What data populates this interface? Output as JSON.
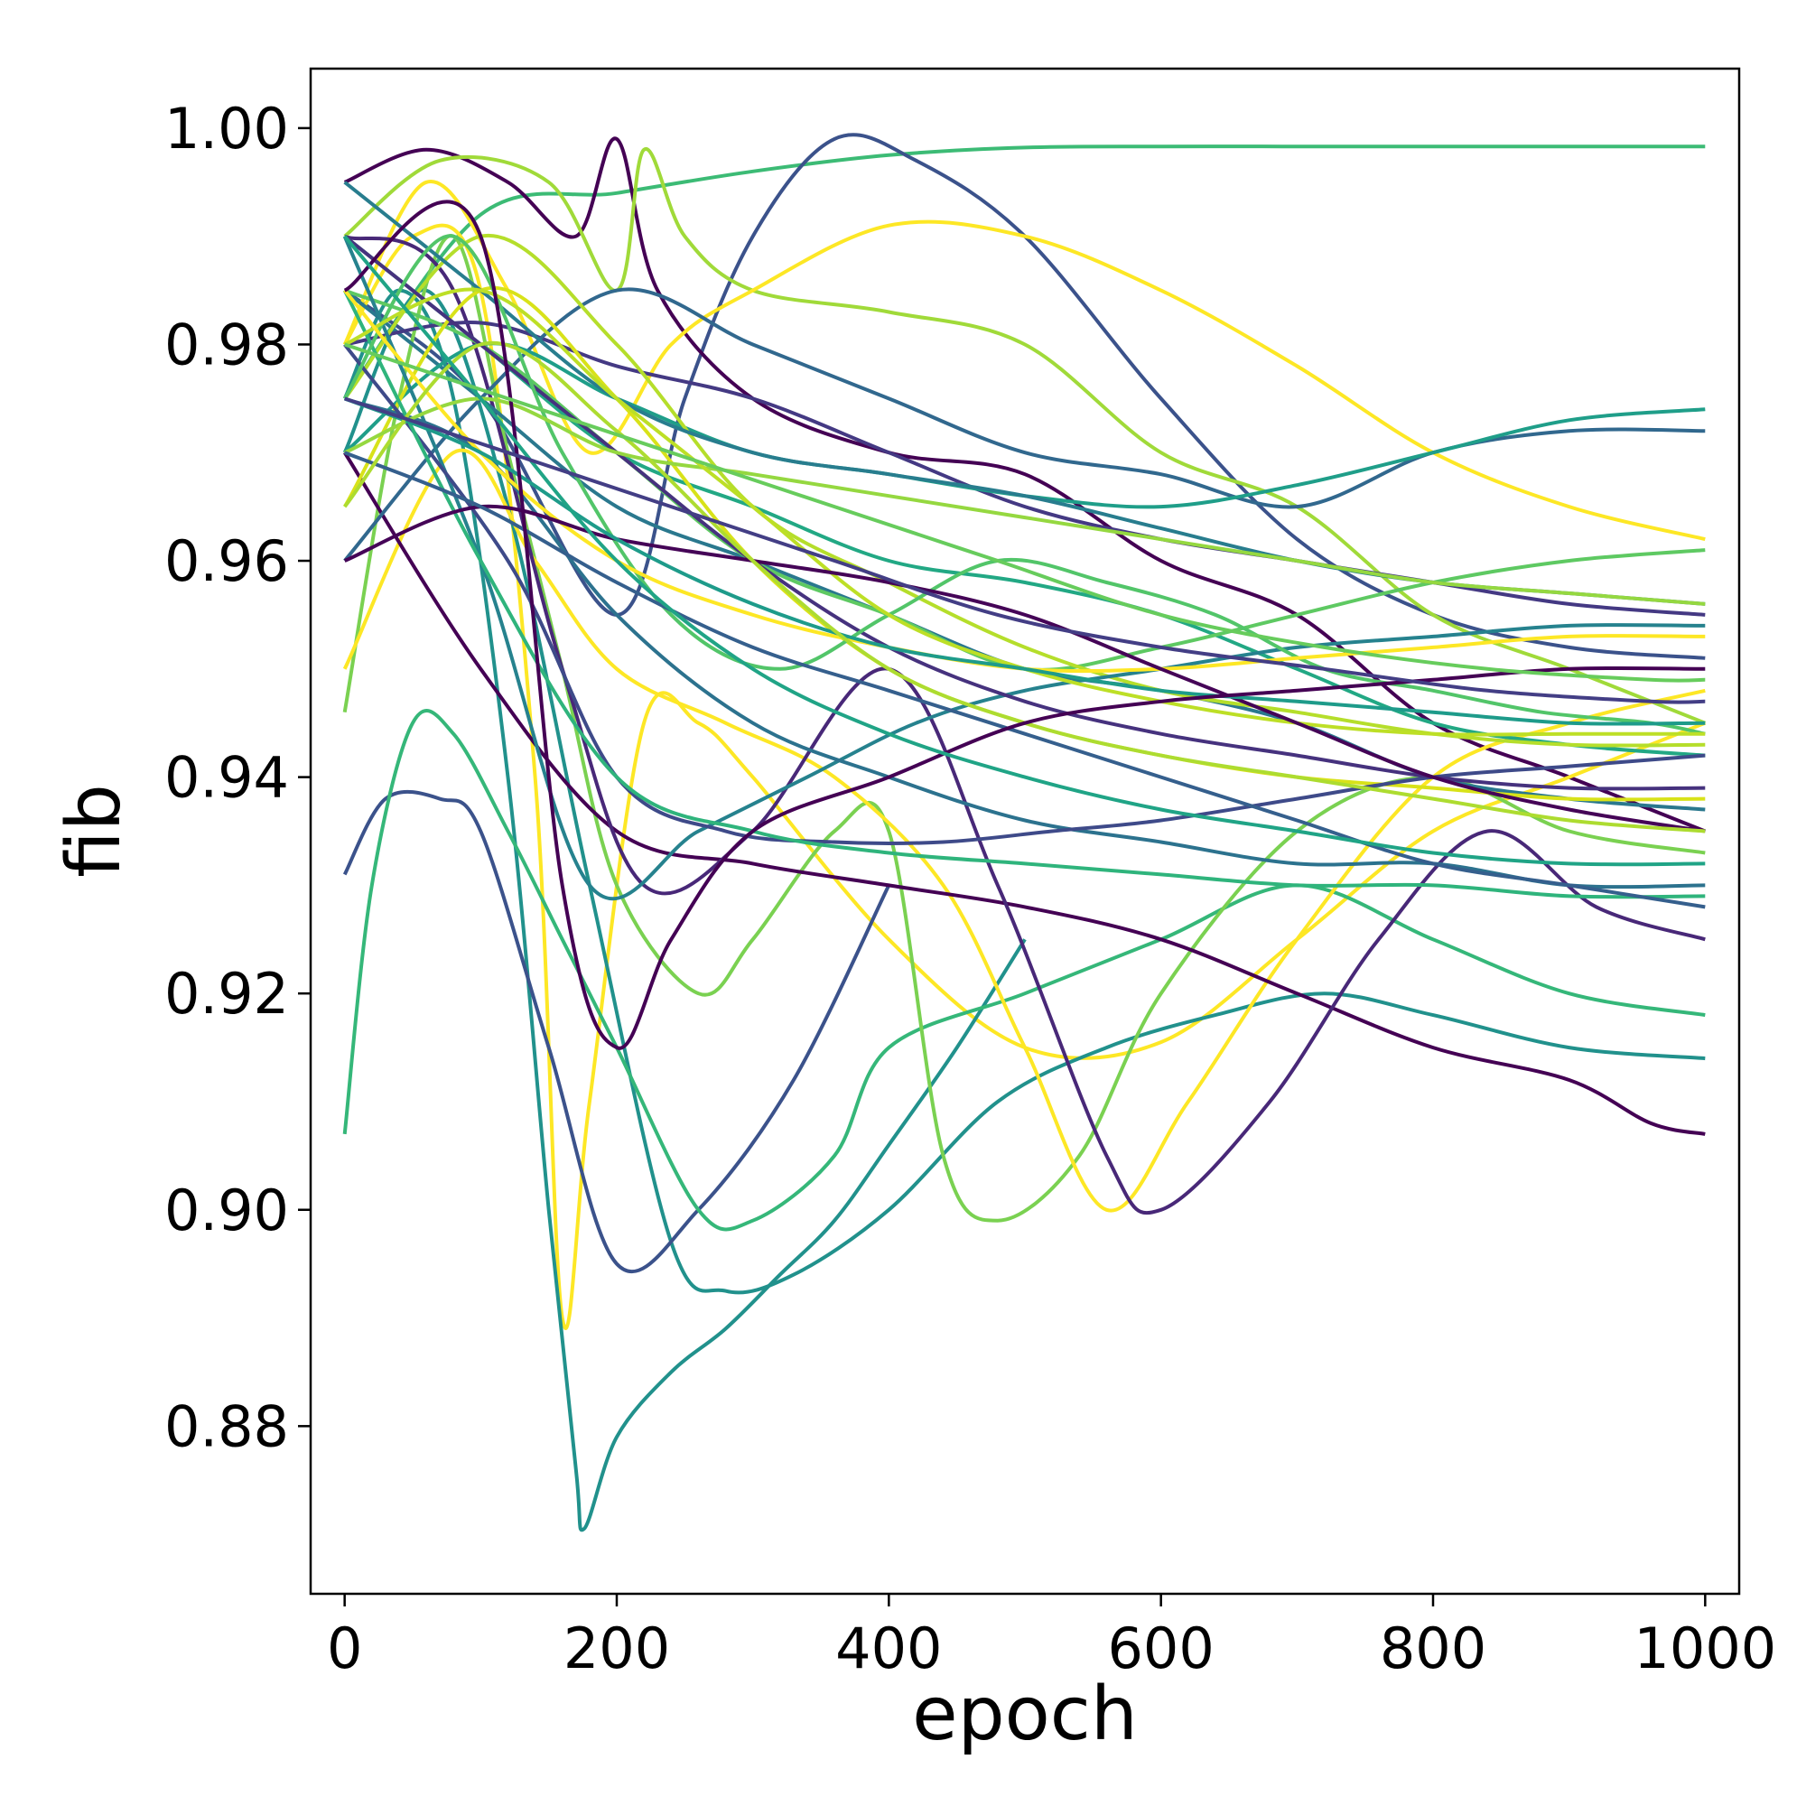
{
  "chart_data": {
    "type": "line",
    "title": "",
    "xlabel": "epoch",
    "ylabel": "fib",
    "xlim": [
      -25,
      1025
    ],
    "ylim": [
      0.8645,
      1.0055
    ],
    "xticks": [
      0,
      200,
      400,
      600,
      800,
      1000
    ],
    "xtick_labels": [
      "0",
      "200",
      "400",
      "600",
      "800",
      "1000"
    ],
    "yticks": [
      0.88,
      0.9,
      0.92,
      0.94,
      0.96,
      0.98,
      1.0
    ],
    "ytick_labels": [
      "0.88",
      "0.90",
      "0.92",
      "0.94",
      "0.96",
      "0.98",
      "1.00"
    ],
    "grid": false,
    "legend": "none",
    "colormap": "viridis",
    "series": [
      {
        "color": "#3cbb75",
        "x": [
          0,
          100,
          200,
          300,
          400,
          500,
          600,
          700,
          800,
          900,
          1000
        ],
        "y": [
          0.975,
          0.992,
          0.994,
          0.996,
          0.9975,
          0.9982,
          0.9983,
          0.9983,
          0.9983,
          0.9983,
          0.9983
        ]
      },
      {
        "color": "#3b528b",
        "x": [
          0,
          100,
          200,
          250,
          300,
          360,
          420,
          500,
          600,
          700,
          800,
          900,
          1000
        ],
        "y": [
          0.985,
          0.975,
          0.955,
          0.975,
          0.99,
          0.999,
          0.997,
          0.99,
          0.975,
          0.962,
          0.955,
          0.952,
          0.951
        ]
      },
      {
        "color": "#440154",
        "x": [
          0,
          60,
          120,
          170,
          200,
          230,
          300,
          400,
          500,
          600,
          700,
          800,
          900,
          1000
        ],
        "y": [
          0.995,
          0.998,
          0.995,
          0.99,
          0.999,
          0.985,
          0.975,
          0.97,
          0.968,
          0.96,
          0.955,
          0.945,
          0.94,
          0.935
        ]
      },
      {
        "color": "#a0da39",
        "x": [
          0,
          70,
          150,
          200,
          220,
          250,
          300,
          400,
          500,
          600,
          700,
          800,
          900,
          1000
        ],
        "y": [
          0.99,
          0.997,
          0.995,
          0.985,
          0.998,
          0.99,
          0.985,
          0.983,
          0.98,
          0.97,
          0.965,
          0.955,
          0.95,
          0.945
        ]
      },
      {
        "color": "#fde725",
        "x": [
          0,
          60,
          120,
          180,
          240,
          300,
          400,
          500,
          600,
          700,
          800,
          900,
          1000
        ],
        "y": [
          0.98,
          0.995,
          0.985,
          0.97,
          0.98,
          0.985,
          0.991,
          0.99,
          0.985,
          0.978,
          0.97,
          0.965,
          0.962
        ]
      },
      {
        "color": "#fde725",
        "x": [
          0,
          50,
          100,
          140,
          160,
          180,
          220,
          260,
          300,
          400,
          500,
          600,
          700,
          800,
          900,
          1000
        ],
        "y": [
          0.98,
          0.99,
          0.985,
          0.94,
          0.89,
          0.91,
          0.945,
          0.945,
          0.94,
          0.925,
          0.915,
          0.9155,
          0.925,
          0.935,
          0.94,
          0.945
        ]
      },
      {
        "color": "#21918c",
        "x": [
          0,
          40,
          80,
          120,
          150,
          170,
          176,
          200,
          240,
          280,
          320,
          360,
          400,
          450,
          500
        ],
        "y": [
          0.975,
          0.985,
          0.975,
          0.94,
          0.9,
          0.876,
          0.8705,
          0.879,
          0.885,
          0.889,
          0.894,
          0.899,
          0.906,
          0.915,
          0.925
        ]
      },
      {
        "color": "#21918c",
        "x": [
          0,
          60,
          120,
          180,
          240,
          280,
          330,
          400,
          480,
          560,
          640,
          720,
          800,
          900,
          1000
        ],
        "y": [
          0.97,
          0.985,
          0.965,
          0.93,
          0.897,
          0.8925,
          0.894,
          0.9,
          0.91,
          0.915,
          0.918,
          0.92,
          0.918,
          0.915,
          0.914
        ]
      },
      {
        "color": "#3b528b",
        "x": [
          0,
          30,
          70,
          100,
          150,
          200,
          260,
          330,
          400
        ],
        "y": [
          0.931,
          0.938,
          0.938,
          0.935,
          0.915,
          0.895,
          0.9,
          0.912,
          0.93
        ]
      },
      {
        "color": "#35b779",
        "x": [
          0,
          20,
          50,
          80,
          120,
          160,
          200,
          260,
          300,
          360,
          400,
          500,
          600,
          700,
          800,
          900,
          1000
        ],
        "y": [
          0.907,
          0.93,
          0.945,
          0.944,
          0.935,
          0.925,
          0.915,
          0.9,
          0.899,
          0.905,
          0.915,
          0.92,
          0.925,
          0.93,
          0.925,
          0.92,
          0.918
        ]
      },
      {
        "color": "#7ad151",
        "x": [
          0,
          40,
          80,
          120,
          160,
          200,
          260,
          300,
          360,
          400,
          440,
          480,
          540,
          600,
          700,
          800,
          900,
          1000
        ],
        "y": [
          0.946,
          0.975,
          0.99,
          0.97,
          0.95,
          0.93,
          0.92,
          0.925,
          0.935,
          0.935,
          0.905,
          0.899,
          0.905,
          0.92,
          0.935,
          0.94,
          0.935,
          0.933
        ]
      },
      {
        "color": "#fde725",
        "x": [
          0,
          80,
          140,
          200,
          280,
          360,
          440,
          500,
          560,
          620,
          700,
          800,
          900,
          1000
        ],
        "y": [
          0.95,
          0.97,
          0.96,
          0.95,
          0.945,
          0.94,
          0.93,
          0.915,
          0.9,
          0.91,
          0.925,
          0.94,
          0.945,
          0.948
        ]
      },
      {
        "color": "#440154",
        "x": [
          0,
          100,
          200,
          300,
          400,
          500,
          600,
          700,
          800,
          900,
          960,
          1000
        ],
        "y": [
          0.97,
          0.95,
          0.935,
          0.932,
          0.93,
          0.928,
          0.925,
          0.92,
          0.915,
          0.912,
          0.908,
          0.907
        ]
      },
      {
        "color": "#482878",
        "x": [
          0,
          80,
          160,
          220,
          300,
          400,
          480,
          560,
          600,
          680,
          760,
          840,
          920,
          1000
        ],
        "y": [
          0.99,
          0.985,
          0.95,
          0.93,
          0.935,
          0.95,
          0.93,
          0.905,
          0.9,
          0.91,
          0.925,
          0.935,
          0.928,
          0.925
        ]
      },
      {
        "color": "#2a788e",
        "x": [
          0,
          100,
          200,
          300,
          400,
          500,
          600,
          700,
          800,
          900,
          1000
        ],
        "y": [
          0.985,
          0.975,
          0.965,
          0.96,
          0.955,
          0.95,
          0.948,
          0.945,
          0.94,
          0.938,
          0.937
        ]
      },
      {
        "color": "#22a884",
        "x": [
          0,
          100,
          200,
          300,
          400,
          500,
          600,
          700,
          800,
          900,
          1000
        ],
        "y": [
          0.99,
          0.98,
          0.97,
          0.965,
          0.96,
          0.958,
          0.955,
          0.95,
          0.945,
          0.943,
          0.942
        ]
      },
      {
        "color": "#443983",
        "x": [
          0,
          100,
          200,
          300,
          400,
          500,
          600,
          700,
          800,
          900,
          1000
        ],
        "y": [
          0.98,
          0.982,
          0.978,
          0.975,
          0.97,
          0.965,
          0.962,
          0.96,
          0.958,
          0.956,
          0.955
        ]
      },
      {
        "color": "#31688e",
        "x": [
          0,
          100,
          200,
          300,
          400,
          500,
          600,
          700,
          800,
          900,
          1000
        ],
        "y": [
          0.96,
          0.975,
          0.985,
          0.98,
          0.975,
          0.97,
          0.968,
          0.965,
          0.97,
          0.972,
          0.972
        ]
      },
      {
        "color": "#1f9e89",
        "x": [
          0,
          100,
          200,
          300,
          400,
          500,
          600,
          700,
          800,
          900,
          1000
        ],
        "y": [
          0.97,
          0.98,
          0.975,
          0.97,
          0.968,
          0.966,
          0.965,
          0.967,
          0.97,
          0.973,
          0.974
        ]
      },
      {
        "color": "#5ec962",
        "x": [
          0,
          100,
          200,
          300,
          400,
          500,
          600,
          700,
          800,
          900,
          1000
        ],
        "y": [
          0.985,
          0.98,
          0.97,
          0.96,
          0.955,
          0.95,
          0.952,
          0.955,
          0.958,
          0.96,
          0.961
        ]
      },
      {
        "color": "#b5de2b",
        "x": [
          0,
          100,
          200,
          300,
          400,
          500,
          600,
          700,
          800,
          900,
          1000
        ],
        "y": [
          0.975,
          0.99,
          0.98,
          0.965,
          0.958,
          0.952,
          0.948,
          0.946,
          0.944,
          0.943,
          0.943
        ]
      },
      {
        "color": "#d8e219",
        "x": [
          0,
          100,
          200,
          300,
          400,
          500,
          600,
          700,
          800,
          900,
          1000
        ],
        "y": [
          0.965,
          0.985,
          0.975,
          0.96,
          0.95,
          0.945,
          0.942,
          0.94,
          0.939,
          0.938,
          0.938
        ]
      },
      {
        "color": "#26828e",
        "x": [
          0,
          100,
          180,
          260,
          340,
          420,
          500,
          600,
          700,
          800,
          900,
          1000
        ],
        "y": [
          0.99,
          0.96,
          0.93,
          0.935,
          0.94,
          0.945,
          0.948,
          0.95,
          0.952,
          0.953,
          0.954,
          0.954
        ]
      },
      {
        "color": "#2c728e",
        "x": [
          0,
          100,
          200,
          300,
          400,
          500,
          600,
          700,
          800,
          900,
          1000
        ],
        "y": [
          0.975,
          0.97,
          0.955,
          0.945,
          0.94,
          0.936,
          0.934,
          0.932,
          0.932,
          0.93,
          0.93
        ]
      },
      {
        "color": "#3e4a89",
        "x": [
          0,
          120,
          200,
          280,
          360,
          440,
          520,
          600,
          700,
          800,
          900,
          1000
        ],
        "y": [
          0.98,
          0.96,
          0.94,
          0.935,
          0.934,
          0.934,
          0.935,
          0.936,
          0.938,
          0.94,
          0.941,
          0.942
        ]
      },
      {
        "color": "#46327e",
        "x": [
          0,
          100,
          200,
          300,
          400,
          500,
          600,
          700,
          800,
          900,
          1000
        ],
        "y": [
          0.99,
          0.98,
          0.97,
          0.96,
          0.952,
          0.947,
          0.944,
          0.942,
          0.94,
          0.939,
          0.939
        ]
      },
      {
        "color": "#287d8e",
        "x": [
          0,
          100,
          200,
          300,
          400,
          500,
          600,
          700,
          800,
          900,
          1000
        ],
        "y": [
          0.995,
          0.985,
          0.975,
          0.97,
          0.968,
          0.966,
          0.963,
          0.96,
          0.958,
          0.957,
          0.956
        ]
      },
      {
        "color": "#2fb47c",
        "x": [
          0,
          100,
          200,
          300,
          400,
          500,
          600,
          700,
          800,
          900,
          1000
        ],
        "y": [
          0.985,
          0.96,
          0.94,
          0.935,
          0.933,
          0.932,
          0.931,
          0.93,
          0.93,
          0.929,
          0.929
        ]
      },
      {
        "color": "#52c569",
        "x": [
          0,
          80,
          160,
          240,
          320,
          400,
          480,
          560,
          640,
          720,
          800,
          880,
          960,
          1000
        ],
        "y": [
          0.975,
          0.99,
          0.97,
          0.955,
          0.95,
          0.955,
          0.96,
          0.958,
          0.955,
          0.95,
          0.948,
          0.946,
          0.945,
          0.944
        ]
      },
      {
        "color": "#95d840",
        "x": [
          0,
          100,
          200,
          300,
          400,
          500,
          600,
          700,
          800,
          900,
          1000
        ],
        "y": [
          0.97,
          0.975,
          0.97,
          0.968,
          0.966,
          0.964,
          0.962,
          0.96,
          0.958,
          0.957,
          0.956
        ]
      },
      {
        "color": "#bddf26",
        "x": [
          0,
          100,
          200,
          300,
          400,
          500,
          600,
          700,
          800,
          900,
          1000
        ],
        "y": [
          0.98,
          0.985,
          0.975,
          0.965,
          0.955,
          0.95,
          0.947,
          0.945,
          0.944,
          0.944,
          0.944
        ]
      },
      {
        "color": "#fde725",
        "x": [
          0,
          100,
          200,
          300,
          400,
          500,
          600,
          700,
          800,
          900,
          1000
        ],
        "y": [
          0.985,
          0.97,
          0.96,
          0.955,
          0.952,
          0.95,
          0.95,
          0.951,
          0.952,
          0.953,
          0.953
        ]
      },
      {
        "color": "#450457",
        "x": [
          0,
          100,
          200,
          300,
          400,
          500,
          600,
          700,
          800,
          900,
          1000
        ],
        "y": [
          0.96,
          0.965,
          0.962,
          0.96,
          0.958,
          0.955,
          0.95,
          0.945,
          0.94,
          0.937,
          0.935
        ]
      },
      {
        "color": "#355f8d",
        "x": [
          0,
          100,
          200,
          300,
          400,
          500,
          600,
          700,
          800,
          900,
          1000
        ],
        "y": [
          0.97,
          0.965,
          0.958,
          0.952,
          0.948,
          0.944,
          0.94,
          0.936,
          0.932,
          0.93,
          0.928
        ]
      },
      {
        "color": "#1e9b8a",
        "x": [
          0,
          100,
          200,
          300,
          400,
          500,
          600,
          700,
          800,
          900,
          1000
        ],
        "y": [
          0.975,
          0.97,
          0.962,
          0.956,
          0.952,
          0.95,
          0.948,
          0.947,
          0.946,
          0.945,
          0.945
        ]
      },
      {
        "color": "#addc30",
        "x": [
          0,
          100,
          200,
          300,
          400,
          500,
          600,
          700,
          800,
          900,
          1000
        ],
        "y": [
          0.965,
          0.98,
          0.972,
          0.96,
          0.95,
          0.945,
          0.942,
          0.94,
          0.938,
          0.936,
          0.935
        ]
      },
      {
        "color": "#440154",
        "x": [
          0,
          100,
          160,
          200,
          240,
          300,
          400,
          500,
          600,
          700,
          800,
          900,
          1000
        ],
        "y": [
          0.985,
          0.99,
          0.93,
          0.915,
          0.925,
          0.935,
          0.94,
          0.945,
          0.947,
          0.948,
          0.949,
          0.95,
          0.95
        ]
      },
      {
        "color": "#20a486",
        "x": [
          0,
          100,
          200,
          300,
          400,
          500,
          600,
          700,
          800,
          900,
          1000
        ],
        "y": [
          0.99,
          0.975,
          0.96,
          0.95,
          0.944,
          0.94,
          0.937,
          0.935,
          0.933,
          0.932,
          0.932
        ]
      },
      {
        "color": "#433e85",
        "x": [
          0,
          120,
          240,
          360,
          480,
          600,
          720,
          840,
          960,
          1000
        ],
        "y": [
          0.975,
          0.97,
          0.965,
          0.96,
          0.955,
          0.952,
          0.95,
          0.948,
          0.947,
          0.947
        ]
      },
      {
        "color": "#67cc5c",
        "x": [
          0,
          120,
          240,
          360,
          480,
          600,
          720,
          840,
          960,
          1000
        ],
        "y": [
          0.98,
          0.975,
          0.97,
          0.965,
          0.96,
          0.955,
          0.952,
          0.95,
          0.949,
          0.949
        ]
      }
    ]
  }
}
